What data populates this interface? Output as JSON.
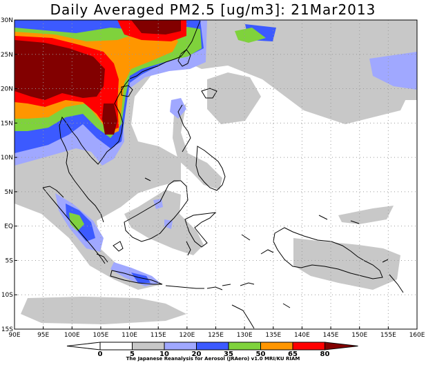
{
  "title": "Daily Averaged PM2.5 [ug/m3]: 21Mar2013",
  "credit": "The Japanese Reanalysis for Aerosol (JRAero) v1.0 MRI/KU RIAM",
  "map": {
    "lon_range": [
      90,
      160
    ],
    "lat_range": [
      -15,
      30
    ],
    "lon_ticks": [
      "90E",
      "95E",
      "100E",
      "105E",
      "110E",
      "115E",
      "120E",
      "125E",
      "130E",
      "135E",
      "140E",
      "145E",
      "150E",
      "155E",
      "160E"
    ],
    "lat_ticks": [
      "30N",
      "25N",
      "20N",
      "15N",
      "10N",
      "5N",
      "EQ",
      "5S",
      "10S",
      "15S"
    ],
    "grid": "dotted every 5 degrees"
  },
  "colorbar": {
    "labels": [
      "0",
      "5",
      "10",
      "20",
      "35",
      "50",
      "65",
      "80"
    ],
    "colors": [
      "#ffffff",
      "#ffffff",
      "#c8c8c8",
      "#a0a8ff",
      "#3c5aff",
      "#7fd23c",
      "#ff9600",
      "#ff0000",
      "#820000"
    ]
  }
}
